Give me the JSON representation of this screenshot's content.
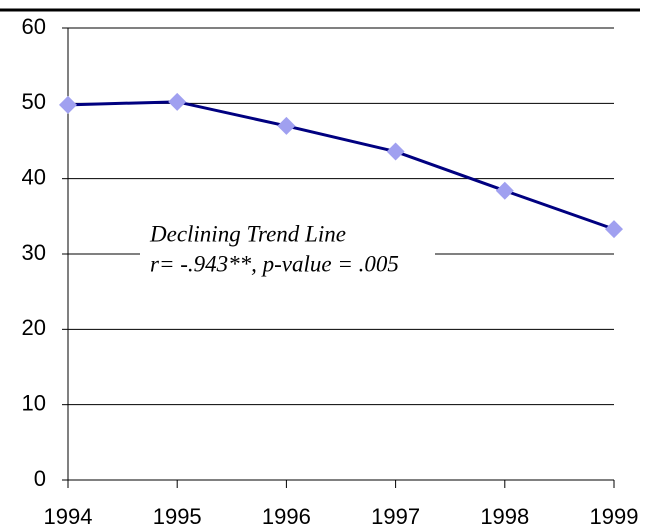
{
  "chart_data": {
    "type": "line",
    "x": [
      1994,
      1995,
      1996,
      1997,
      1998,
      1999
    ],
    "series": [
      {
        "color": "#000080",
        "marker_color": "#a0a0f0",
        "values": [
          49.8,
          50.2,
          47.0,
          43.6,
          38.4,
          33.3
        ]
      }
    ],
    "xlim": [
      1994,
      1999
    ],
    "xticks": [
      1994,
      1995,
      1996,
      1997,
      1998,
      1999
    ],
    "ylim": [
      0,
      60
    ],
    "yticks": [
      0,
      10,
      20,
      30,
      40,
      50,
      60
    ],
    "grid": true,
    "annotations": [
      "Declining Trend Line",
      "r= -.943**, p-value = .005"
    ]
  }
}
